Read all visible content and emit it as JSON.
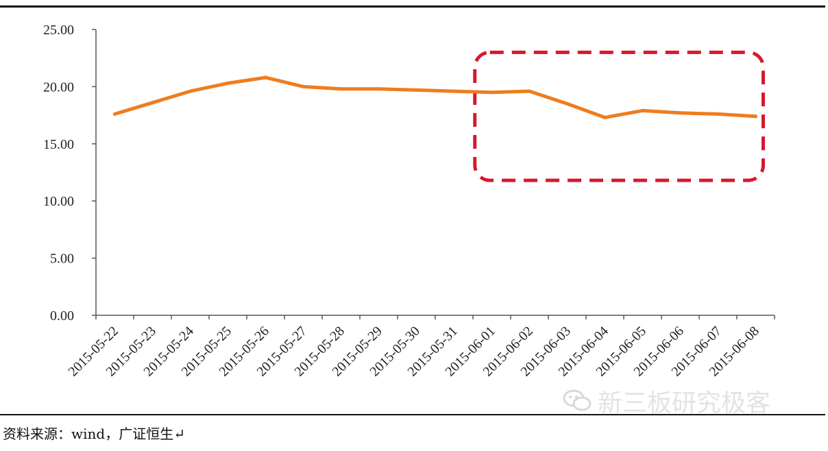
{
  "chart_data": {
    "type": "line",
    "x": [
      "2015-05-22",
      "2015-05-23",
      "2015-05-24",
      "2015-05-25",
      "2015-05-26",
      "2015-05-27",
      "2015-05-28",
      "2015-05-29",
      "2015-05-30",
      "2015-05-31",
      "2015-06-01",
      "2015-06-02",
      "2015-06-03",
      "2015-06-04",
      "2015-06-05",
      "2015-06-06",
      "2015-06-07",
      "2015-06-08"
    ],
    "series": [
      {
        "values": [
          17.6,
          18.6,
          19.6,
          20.3,
          20.8,
          20.0,
          19.8,
          19.8,
          19.7,
          19.6,
          19.5,
          19.6,
          18.5,
          17.3,
          17.9,
          17.7,
          17.6,
          17.4
        ],
        "color": "#ee7d1e"
      }
    ],
    "ylim": [
      0,
      25
    ],
    "yticks": [
      "0.00",
      "5.00",
      "10.00",
      "15.00",
      "20.00",
      "25.00"
    ],
    "grid": false,
    "highlight": {
      "x_from": "2015-06-01",
      "x_to": "2015-06-08",
      "y_from": 11.8,
      "y_to": 23.0,
      "color": "#d7192e",
      "style": "dashed"
    }
  },
  "source_note": "资料来源：wind，广证恒生↵",
  "watermark": {
    "icon": "wechat-icon",
    "text": "新三板研究极客"
  }
}
